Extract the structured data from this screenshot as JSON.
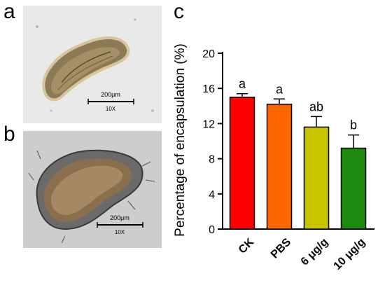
{
  "panels": {
    "a": {
      "letter": "a",
      "scale_bar_length": "200μm",
      "magnification": "10X"
    },
    "b": {
      "letter": "b",
      "scale_bar_length": "200μm",
      "magnification": "10X"
    },
    "c": {
      "letter": "c"
    }
  },
  "colors": {
    "bar_ck": "#ff0000",
    "bar_pbs": "#ff6600",
    "bar_6": "#c8c400",
    "bar_10": "#1f8a10",
    "micro_a_bg": "#e9e9e9",
    "micro_b_bg": "#cdcdcd"
  },
  "chart_data": {
    "type": "bar",
    "categories": [
      "CK",
      "PBS",
      "6 μg/g",
      "10 μg/g"
    ],
    "values": [
      15.0,
      14.2,
      11.6,
      9.2
    ],
    "errors": [
      0.4,
      0.6,
      1.2,
      1.5
    ],
    "significance": [
      "a",
      "a",
      "ab",
      "b"
    ],
    "colors": [
      "#ff0000",
      "#ff6600",
      "#c8c400",
      "#1f8a10"
    ],
    "ylabel": "Percentage of encapsulation (%)",
    "xlabel": "",
    "ylim": [
      0,
      20
    ],
    "yticks": [
      0,
      4,
      8,
      12,
      16,
      20
    ],
    "grid": false
  }
}
